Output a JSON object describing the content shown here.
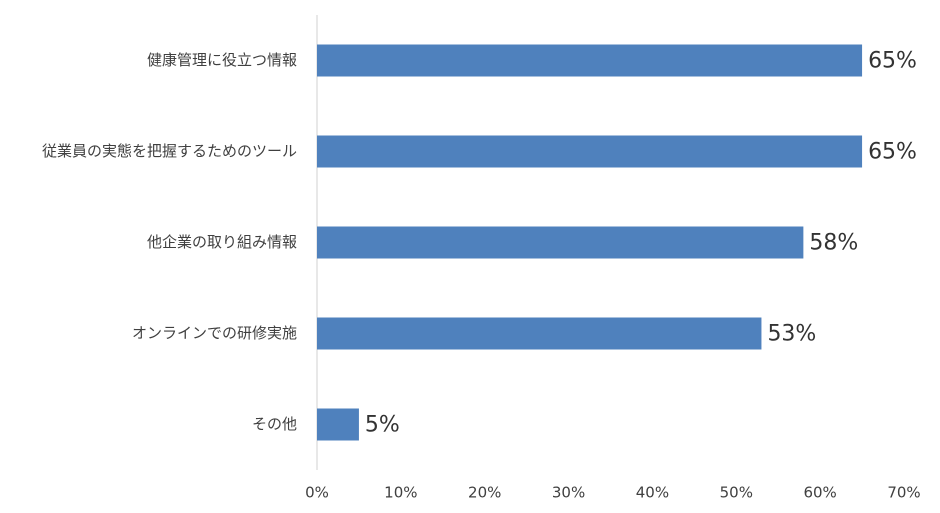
{
  "chart_data": {
    "type": "bar",
    "orientation": "horizontal",
    "categories": [
      "健康管理に役立つ情報",
      "従業員の実態を把握するためのツール",
      "他企業の取り組み情報",
      "オンラインでの研修実施",
      "その他"
    ],
    "values": [
      65,
      65,
      58,
      53,
      5
    ],
    "value_labels": [
      "65%",
      "65%",
      "58%",
      "53%",
      "5%"
    ],
    "color": "#4f81bd",
    "xlim": [
      0,
      70
    ],
    "xticks": [
      {
        "value": 0,
        "label": "0%"
      },
      {
        "value": 10,
        "label": "10%"
      },
      {
        "value": 20,
        "label": "20%"
      },
      {
        "value": 30,
        "label": "30%"
      },
      {
        "value": 40,
        "label": "40%"
      },
      {
        "value": 50,
        "label": "50%"
      },
      {
        "value": 60,
        "label": "60%"
      },
      {
        "value": 70,
        "label": "70%"
      }
    ],
    "grid": false
  }
}
